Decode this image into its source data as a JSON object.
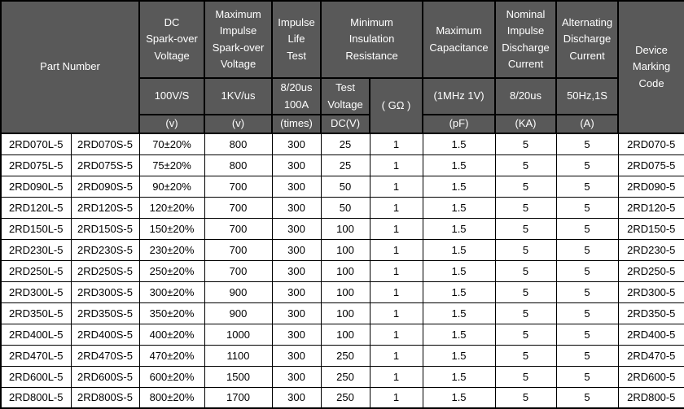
{
  "colors": {
    "header_bg": "#595959",
    "header_text": "#ffffff",
    "body_bg": "#ffffff",
    "body_text": "#000000",
    "border": "#000000"
  },
  "table": {
    "header": {
      "part_number": "Part Number",
      "dc_sparkover": "DC\nSpark-over\nVoltage",
      "max_impulse_sparkover": "Maximum\nImpulse\nSpark-over\nVoltage",
      "impulse_life_test": "Impulse\nLife\nTest",
      "min_insulation_resistance": "Minimum\nInsulation\nResistance",
      "max_capacitance": "Maximum\nCapacitance",
      "nominal_impulse_discharge": "Nominal\nImpulse\nDischarge\nCurrent",
      "alternating_discharge": "Alternating\nDischarge\nCurrent",
      "device_marking_code": "Device\nMarking\nCode",
      "sub": {
        "dc_condition": "100V/S",
        "impulse_condition": "1KV/us",
        "life_condition": "8/20us\n100A",
        "test_voltage": "Test\nVoltage",
        "insulation_unit": "( GΩ )",
        "capacitance_condition": "(1MHz 1V)",
        "discharge_condition": "8/20us",
        "ac_condition": "50Hz,1S"
      },
      "units": {
        "dc_unit": "(v)",
        "impulse_unit": "(v)",
        "life_unit": "(times)",
        "test_voltage_unit": "DC(V)",
        "capacitance_unit": "(pF)",
        "discharge_unit": "(KA)",
        "ac_unit": "(A)"
      }
    },
    "rows": [
      [
        "2RD070L-5",
        "2RD070S-5",
        "70±20%",
        "800",
        "300",
        "25",
        "1",
        "1.5",
        "5",
        "5",
        "2RD070-5"
      ],
      [
        "2RD075L-5",
        "2RD075S-5",
        "75±20%",
        "800",
        "300",
        "25",
        "1",
        "1.5",
        "5",
        "5",
        "2RD075-5"
      ],
      [
        "2RD090L-5",
        "2RD090S-5",
        "90±20%",
        "700",
        "300",
        "50",
        "1",
        "1.5",
        "5",
        "5",
        "2RD090-5"
      ],
      [
        "2RD120L-5",
        "2RD120S-5",
        "120±20%",
        "700",
        "300",
        "50",
        "1",
        "1.5",
        "5",
        "5",
        "2RD120-5"
      ],
      [
        "2RD150L-5",
        "2RD150S-5",
        "150±20%",
        "700",
        "300",
        "100",
        "1",
        "1.5",
        "5",
        "5",
        "2RD150-5"
      ],
      [
        "2RD230L-5",
        "2RD230S-5",
        "230±20%",
        "700",
        "300",
        "100",
        "1",
        "1.5",
        "5",
        "5",
        "2RD230-5"
      ],
      [
        "2RD250L-5",
        "2RD250S-5",
        "250±20%",
        "700",
        "300",
        "100",
        "1",
        "1.5",
        "5",
        "5",
        "2RD250-5"
      ],
      [
        "2RD300L-5",
        "2RD300S-5",
        "300±20%",
        "900",
        "300",
        "100",
        "1",
        "1.5",
        "5",
        "5",
        "2RD300-5"
      ],
      [
        "2RD350L-5",
        "2RD350S-5",
        "350±20%",
        "900",
        "300",
        "100",
        "1",
        "1.5",
        "5",
        "5",
        "2RD350-5"
      ],
      [
        "2RD400L-5",
        "2RD400S-5",
        "400±20%",
        "1000",
        "300",
        "100",
        "1",
        "1.5",
        "5",
        "5",
        "2RD400-5"
      ],
      [
        "2RD470L-5",
        "2RD470S-5",
        "470±20%",
        "1100",
        "300",
        "250",
        "1",
        "1.5",
        "5",
        "5",
        "2RD470-5"
      ],
      [
        "2RD600L-5",
        "2RD600S-5",
        "600±20%",
        "1500",
        "300",
        "250",
        "1",
        "1.5",
        "5",
        "5",
        "2RD600-5"
      ],
      [
        "2RD800L-5",
        "2RD800S-5",
        "800±20%",
        "1700",
        "300",
        "250",
        "1",
        "1.5",
        "5",
        "5",
        "2RD800-5"
      ]
    ]
  }
}
